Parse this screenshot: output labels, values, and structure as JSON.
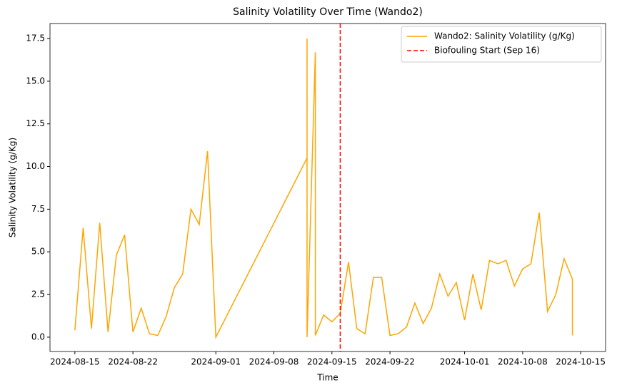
{
  "chart_data": {
    "type": "line",
    "title": "Salinity Volatility Over Time (Wando2)",
    "xlabel": "Time",
    "ylabel": "Salinity Volatility (g/Kg)",
    "x": [
      "2024-08-15",
      "2024-08-16",
      "2024-08-17",
      "2024-08-18",
      "2024-08-19",
      "2024-08-20",
      "2024-08-21",
      "2024-08-22",
      "2024-08-23",
      "2024-08-24",
      "2024-08-25",
      "2024-08-26",
      "2024-08-27",
      "2024-08-28",
      "2024-08-29",
      "2024-08-30",
      "2024-08-31",
      "2024-09-01",
      "2024-09-12",
      "2024-09-12",
      "2024-09-12",
      "2024-09-13",
      "2024-09-13",
      "2024-09-14",
      "2024-09-15",
      "2024-09-16",
      "2024-09-17",
      "2024-09-18",
      "2024-09-19",
      "2024-09-20",
      "2024-09-21",
      "2024-09-22",
      "2024-09-23",
      "2024-09-24",
      "2024-09-25",
      "2024-09-26",
      "2024-09-27",
      "2024-09-28",
      "2024-09-29",
      "2024-09-30",
      "2024-10-01",
      "2024-10-02",
      "2024-10-03",
      "2024-10-04",
      "2024-10-05",
      "2024-10-06",
      "2024-10-07",
      "2024-10-08",
      "2024-10-09",
      "2024-10-10",
      "2024-10-11",
      "2024-10-12",
      "2024-10-13",
      "2024-10-14",
      "2024-10-14"
    ],
    "series": [
      {
        "name": "Wando2: Salinity Volatility (g/Kg)",
        "color": "#ffa500",
        "values": [
          0.4,
          6.4,
          0.5,
          6.7,
          0.3,
          4.8,
          6.0,
          0.3,
          1.7,
          0.2,
          0.1,
          1.2,
          2.9,
          3.7,
          7.5,
          6.6,
          10.9,
          0.0,
          10.5,
          17.5,
          0.0,
          16.7,
          0.1,
          1.3,
          0.9,
          1.4,
          4.4,
          0.5,
          0.2,
          3.5,
          3.5,
          0.1,
          0.2,
          0.6,
          2.0,
          0.8,
          1.7,
          3.7,
          2.4,
          3.2,
          1.0,
          3.7,
          1.6,
          4.5,
          4.3,
          4.5,
          3.0,
          4.0,
          4.3,
          7.3,
          1.5,
          2.5,
          4.6,
          3.4,
          0.1
        ]
      }
    ],
    "vline": {
      "x": "2024-09-16",
      "label": "Biofouling Start (Sep 16)",
      "color": "#ff0000"
    },
    "xlim": [
      "2024-08-12",
      "2024-10-18"
    ],
    "xticks": [
      "2024-08-15",
      "2024-08-22",
      "2024-09-01",
      "2024-09-08",
      "2024-09-15",
      "2024-09-22",
      "2024-10-01",
      "2024-10-08",
      "2024-10-15"
    ],
    "ylim": [
      -0.84,
      18.38
    ],
    "yticks": [
      {
        "value": 0,
        "label": "0.0"
      },
      2.5,
      {
        "value": 5,
        "label": "5.0"
      },
      7.5,
      {
        "value": 10,
        "label": "10.0"
      },
      12.5,
      {
        "value": 15,
        "label": "15.0"
      },
      17.5
    ],
    "legend": "upper right"
  }
}
